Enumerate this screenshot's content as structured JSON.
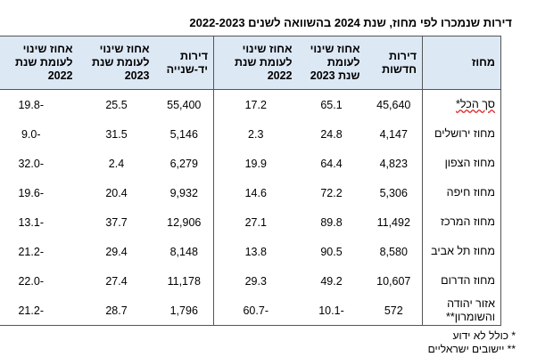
{
  "title": "דירות שנמכרו לפי מחוז, שנת 2024 בהשוואה לשנים 2022-2023",
  "table": {
    "columns": [
      "מחוז",
      "דירות חדשות",
      "אחוז שינוי לעומת שנת 2023",
      "אחוז שינוי לעומת שנת 2022",
      "דירות יד-שנייה",
      "אחוז שינוי לעומת שנת 2023",
      "אחוז שינוי לעומת שנת 2022"
    ],
    "rows": [
      [
        "סך הכל*",
        "45,640",
        "65.1",
        "17.2",
        "55,400",
        "25.5",
        "-19.8"
      ],
      [
        "מחוז ירושלים",
        "4,147",
        "24.8",
        "2.3",
        "5,146",
        "31.5",
        "-9.0"
      ],
      [
        "מחוז הצפון",
        "4,823",
        "64.4",
        "19.9",
        "6,279",
        "2.4",
        "-32.0"
      ],
      [
        "מחוז חיפה",
        "5,306",
        "72.2",
        "14.6",
        "9,932",
        "20.4",
        "-19.6"
      ],
      [
        "מחוז המרכז",
        "11,492",
        "89.8",
        "27.1",
        "12,906",
        "37.7",
        "-13.1"
      ],
      [
        "מחוז תל אביב",
        "8,580",
        "90.5",
        "13.8",
        "8,148",
        "29.4",
        "-21.2"
      ],
      [
        "מחוז הדרום",
        "10,607",
        "49.2",
        "29.3",
        "11,178",
        "27.4",
        "-22.0"
      ],
      [
        "אזור יהודה והשומרון**",
        "572",
        "-10.1",
        "-60.7",
        "1,796",
        "28.7",
        "-21.2"
      ]
    ]
  },
  "footnotes": [
    "* כולל לא ידוע",
    "** יישובים ישראליים"
  ]
}
